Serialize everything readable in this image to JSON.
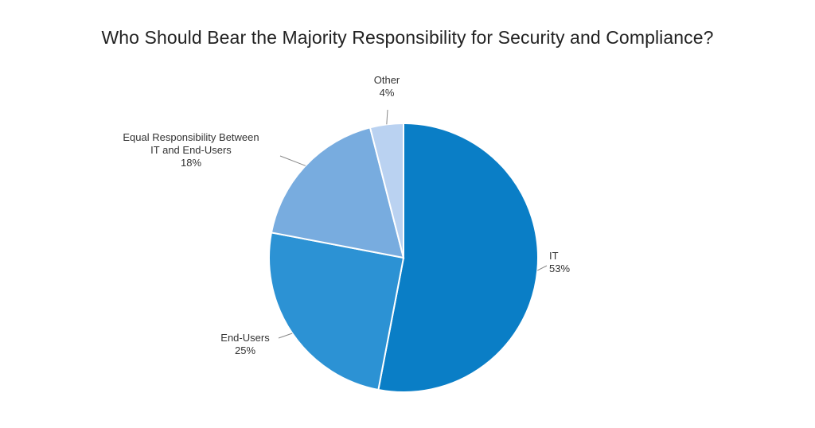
{
  "chart_data": {
    "type": "pie",
    "title": "Who Should Bear the Majority Responsibility for Security and Compliance?",
    "slices": [
      {
        "label_lines": [
          "IT"
        ],
        "value": 53,
        "value_label": "53%",
        "color": "#0a7ec6"
      },
      {
        "label_lines": [
          "End-Users"
        ],
        "value": 25,
        "value_label": "25%",
        "color": "#2c92d4"
      },
      {
        "label_lines": [
          "Equal Responsibility Between",
          "IT and End-Users"
        ],
        "value": 18,
        "value_label": "18%",
        "color": "#78acdf"
      },
      {
        "label_lines": [
          "Other"
        ],
        "value": 4,
        "value_label": "4%",
        "color": "#bad2f1"
      }
    ],
    "start_angle_deg": 0,
    "direction": "clockwise",
    "legend": "none",
    "labels": "outside-with-leader-lines"
  }
}
